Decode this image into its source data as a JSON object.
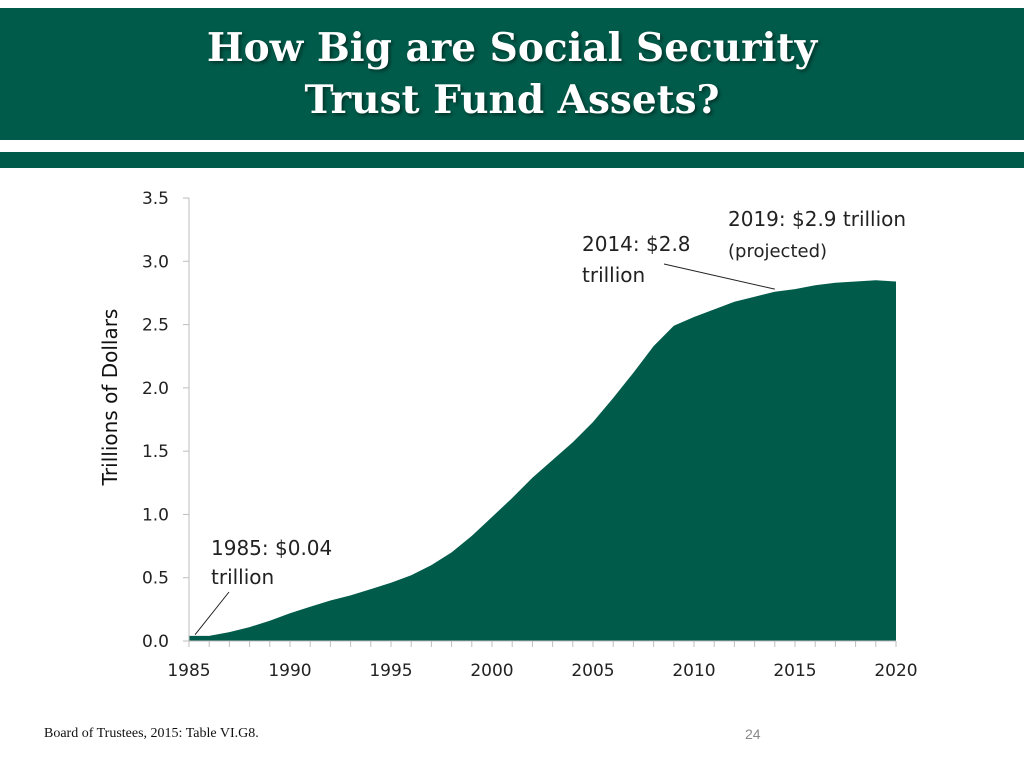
{
  "slide": {
    "title_line1": "How Big are Social Security",
    "title_line2": "Trust Fund Assets?",
    "source": "Board of Trustees, 2015: Table VI.G8.",
    "page_number": "24"
  },
  "colors": {
    "brand": "#005b4a",
    "area_fill": "#005b4a",
    "text": "#222222"
  },
  "chart_data": {
    "type": "area",
    "ylabel": "Trillions of Dollars",
    "xlabel": "",
    "xlim": [
      1985,
      2020
    ],
    "ylim": [
      0,
      3.5
    ],
    "grid": false,
    "x_ticks": [
      "1985",
      "1990",
      "1995",
      "2000",
      "2005",
      "2010",
      "2015",
      "2020"
    ],
    "y_ticks": [
      "0.0",
      "0.5",
      "1.0",
      "1.5",
      "2.0",
      "2.5",
      "3.0",
      "3.5"
    ],
    "series": [
      {
        "x": [
          1985,
          1986,
          1987,
          1988,
          1989,
          1990,
          1991,
          1992,
          1993,
          1994,
          1995,
          1996,
          1997,
          1998,
          1999,
          2000,
          2001,
          2002,
          2003,
          2004,
          2005,
          2006,
          2007,
          2008,
          2009,
          2010,
          2011,
          2012,
          2013,
          2014,
          2015,
          2016,
          2017,
          2018,
          2019,
          2020
        ],
        "values": [
          0.04,
          0.04,
          0.07,
          0.11,
          0.16,
          0.22,
          0.27,
          0.32,
          0.36,
          0.41,
          0.46,
          0.52,
          0.6,
          0.7,
          0.83,
          0.98,
          1.13,
          1.29,
          1.43,
          1.57,
          1.73,
          1.92,
          2.12,
          2.33,
          2.49,
          2.56,
          2.62,
          2.68,
          2.72,
          2.76,
          2.78,
          2.81,
          2.83,
          2.84,
          2.85,
          2.84
        ]
      }
    ],
    "annotations": [
      {
        "line1": "1985: $0.04",
        "line2": "trillion",
        "point_x": 1985.3,
        "point_y": 0.05
      },
      {
        "line1": "2014: $2.8",
        "line2": "trillion",
        "point_x": 2014,
        "point_y": 2.78
      },
      {
        "line1": "2019: $2.9 trillion",
        "line2": "(projected)"
      }
    ]
  }
}
